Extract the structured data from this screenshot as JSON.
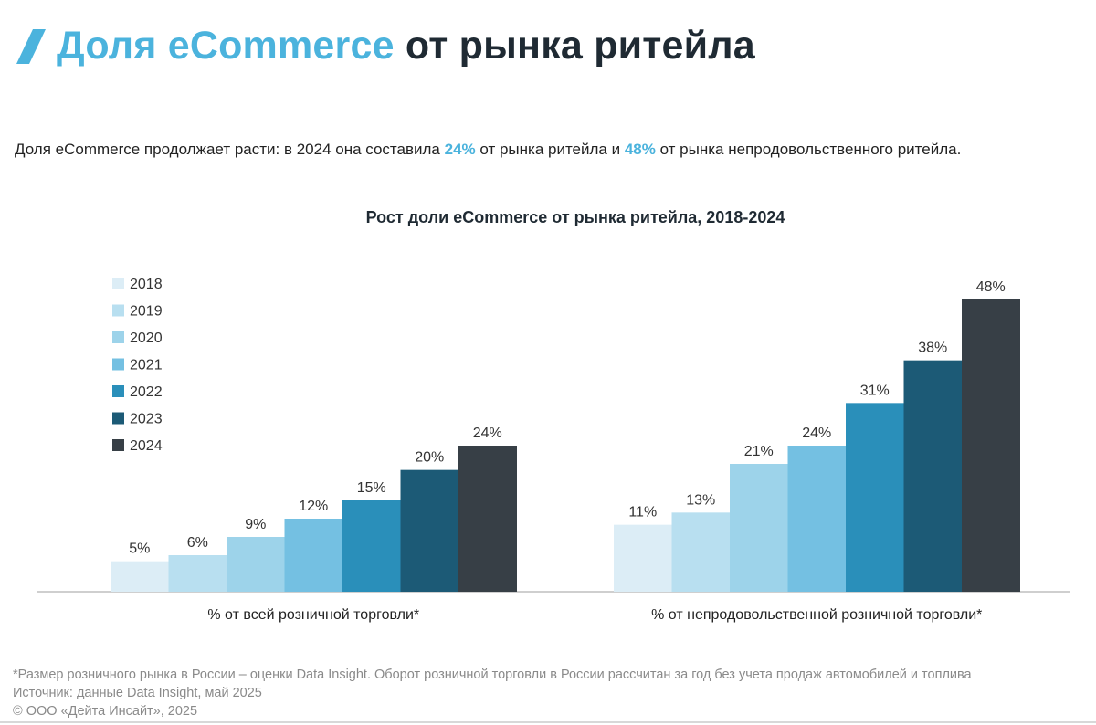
{
  "header": {
    "title_accent": "Доля eCommerce",
    "title_rest": "от рынка ритейла"
  },
  "intro": {
    "part1": "Доля eCommerce продолжает расти: в 2024 она составила ",
    "value1": "24%",
    "part2": " от рынка ритейла и ",
    "value2": "48%",
    "part3": " от рынка непродовольственного ритейла."
  },
  "chart_data": {
    "type": "bar",
    "title": "Рост доли eCommerce от рынка ритейла, 2018-2024",
    "categories": [
      "% от всей розничной торговли*",
      "% от непродовольственной розничной торговли*"
    ],
    "series": [
      {
        "name": "2018",
        "values": [
          5,
          11
        ],
        "labels": [
          "5%",
          "11%"
        ],
        "color": "#dcedf6"
      },
      {
        "name": "2019",
        "values": [
          6,
          13
        ],
        "labels": [
          "6%",
          "13%"
        ],
        "color": "#b8dff0"
      },
      {
        "name": "2020",
        "values": [
          9,
          21
        ],
        "labels": [
          "9%",
          "21%"
        ],
        "color": "#9dd3ea"
      },
      {
        "name": "2021",
        "values": [
          12,
          24
        ],
        "labels": [
          "12%",
          "24%"
        ],
        "color": "#74c0e2"
      },
      {
        "name": "2022",
        "values": [
          15,
          31
        ],
        "labels": [
          "15%",
          "31%"
        ],
        "color": "#2a8fba"
      },
      {
        "name": "2023",
        "values": [
          20,
          38
        ],
        "labels": [
          "20%",
          "38%"
        ],
        "color": "#1c5a76"
      },
      {
        "name": "2024",
        "values": [
          24,
          48
        ],
        "labels": [
          "24%",
          "48%"
        ],
        "color": "#373f46"
      }
    ],
    "ylim": [
      0,
      50
    ],
    "legend": "top-left",
    "grid": false
  },
  "footer": {
    "note": "*Размер розничного рынка в России – оценки Data Insight. Оборот розничной торговли в России рассчитан за год без учета продаж автомобилей и топлива",
    "source": "Источник: данные Data Insight, май 2025",
    "copyright": "© ООО «Дейта Инсайт», 2025"
  },
  "colors": {
    "accent": "#4bb3dd",
    "title_dark": "#1f2a33",
    "axis": "#bfbfbf"
  }
}
